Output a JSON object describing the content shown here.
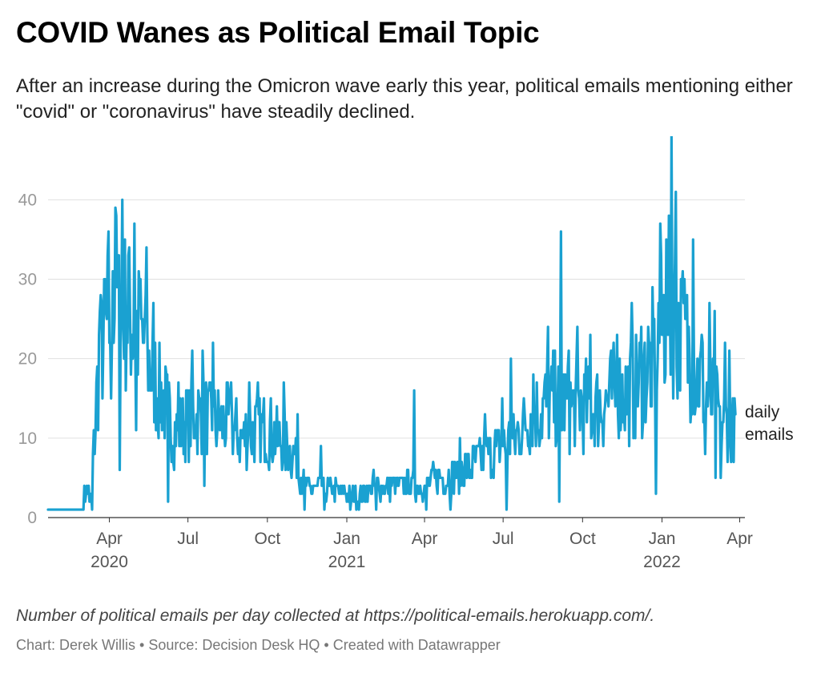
{
  "header": {
    "title": "COVID Wanes as Political Email Topic",
    "subtitle": "After an increase during the Omicron wave early this year, political emails mentioning either \"covid\" or \"coronavirus\" have steadily declined."
  },
  "footer": {
    "note": "Number of political emails per day collected at https://political-emails.herokuapp.com/.",
    "credit": "Chart: Derek Willis • Source: Decision Desk HQ • Created with Datawrapper"
  },
  "chart_data": {
    "type": "line",
    "title": "COVID Wanes as Political Email Topic",
    "x_ticks": [
      {
        "date": "2020-04-01",
        "label": "Apr",
        "year": "2020"
      },
      {
        "date": "2020-07-01",
        "label": "Jul",
        "year": ""
      },
      {
        "date": "2020-10-01",
        "label": "Oct",
        "year": ""
      },
      {
        "date": "2021-01-01",
        "label": "Jan",
        "year": "2021"
      },
      {
        "date": "2021-04-01",
        "label": "Apr",
        "year": ""
      },
      {
        "date": "2021-07-01",
        "label": "Jul",
        "year": ""
      },
      {
        "date": "2021-10-01",
        "label": "Oct",
        "year": ""
      },
      {
        "date": "2022-01-01",
        "label": "Jan",
        "year": "2022"
      },
      {
        "date": "2022-04-01",
        "label": "Apr",
        "year": ""
      }
    ],
    "x_range": [
      "2020-01-21",
      "2022-04-07"
    ],
    "y_ticks": [
      0,
      10,
      20,
      30,
      40
    ],
    "ylim": [
      0,
      48
    ],
    "grid": true,
    "color": "#1aa1d1",
    "series": [
      {
        "name": "daily emails",
        "start_date": "2020-01-21",
        "end_date": "2022-03-27",
        "anchors": [
          [
            "2020-01-21",
            1
          ],
          [
            "2020-03-02",
            1
          ],
          [
            "2020-03-05",
            4
          ],
          [
            "2020-03-10",
            1
          ],
          [
            "2020-03-14",
            9
          ],
          [
            "2020-03-20",
            20
          ],
          [
            "2020-04-01",
            25
          ],
          [
            "2020-04-10",
            28
          ],
          [
            "2020-04-20",
            26
          ],
          [
            "2020-05-01",
            24
          ],
          [
            "2020-05-10",
            22
          ],
          [
            "2020-05-20",
            18
          ],
          [
            "2020-06-01",
            15
          ],
          [
            "2020-06-15",
            11
          ],
          [
            "2020-07-01",
            12
          ],
          [
            "2020-07-15",
            13
          ],
          [
            "2020-08-01",
            12
          ],
          [
            "2020-08-15",
            12
          ],
          [
            "2020-09-01",
            10
          ],
          [
            "2020-09-15",
            11
          ],
          [
            "2020-10-01",
            11
          ],
          [
            "2020-10-15",
            10
          ],
          [
            "2020-11-01",
            8
          ],
          [
            "2020-11-10",
            5
          ],
          [
            "2020-11-20",
            3.5
          ],
          [
            "2020-12-01",
            4
          ],
          [
            "2020-12-15",
            3.5
          ],
          [
            "2021-01-01",
            3
          ],
          [
            "2021-01-15",
            2.5
          ],
          [
            "2021-02-01",
            4
          ],
          [
            "2021-02-15",
            4
          ],
          [
            "2021-03-01",
            4
          ],
          [
            "2021-03-15",
            4
          ],
          [
            "2021-04-01",
            4
          ],
          [
            "2021-04-15",
            5
          ],
          [
            "2021-05-01",
            5
          ],
          [
            "2021-05-15",
            6
          ],
          [
            "2021-06-01",
            7
          ],
          [
            "2021-06-15",
            8
          ],
          [
            "2021-07-01",
            9
          ],
          [
            "2021-07-15",
            10
          ],
          [
            "2021-08-01",
            13
          ],
          [
            "2021-08-15",
            14
          ],
          [
            "2021-09-01",
            15
          ],
          [
            "2021-09-15",
            14
          ],
          [
            "2021-10-01",
            14
          ],
          [
            "2021-10-15",
            14
          ],
          [
            "2021-11-01",
            15
          ],
          [
            "2021-11-15",
            16
          ],
          [
            "2021-12-01",
            16
          ],
          [
            "2021-12-15",
            19
          ],
          [
            "2022-01-01",
            24
          ],
          [
            "2022-01-10",
            27
          ],
          [
            "2022-01-20",
            24
          ],
          [
            "2022-02-01",
            21
          ],
          [
            "2022-02-15",
            17
          ],
          [
            "2022-03-01",
            14
          ],
          [
            "2022-03-15",
            12
          ],
          [
            "2022-03-27",
            11
          ]
        ],
        "peaks": [
          [
            "2020-03-03",
            4
          ],
          [
            "2020-03-08",
            4
          ],
          [
            "2020-03-21",
            26
          ],
          [
            "2020-03-27",
            30
          ],
          [
            "2020-03-31",
            36
          ],
          [
            "2020-04-05",
            31
          ],
          [
            "2020-04-08",
            39
          ],
          [
            "2020-04-12",
            33
          ],
          [
            "2020-04-16",
            40
          ],
          [
            "2020-04-23",
            33
          ],
          [
            "2020-04-30",
            37
          ],
          [
            "2020-05-06",
            29
          ],
          [
            "2020-05-14",
            34
          ],
          [
            "2020-05-22",
            27
          ],
          [
            "2020-06-05",
            19
          ],
          [
            "2020-06-20",
            17
          ],
          [
            "2020-06-30",
            16
          ],
          [
            "2020-07-06",
            21
          ],
          [
            "2020-07-18",
            21
          ],
          [
            "2020-07-30",
            22
          ],
          [
            "2020-08-20",
            17
          ],
          [
            "2020-09-10",
            17
          ],
          [
            "2020-09-20",
            17
          ],
          [
            "2020-10-20",
            17
          ],
          [
            "2020-11-05",
            13
          ],
          [
            "2020-12-02",
            9
          ],
          [
            "2021-03-20",
            16
          ],
          [
            "2021-05-12",
            10
          ],
          [
            "2021-06-10",
            13
          ],
          [
            "2021-06-30",
            15
          ],
          [
            "2021-07-10",
            20
          ],
          [
            "2021-08-05",
            18
          ],
          [
            "2021-08-22",
            24
          ],
          [
            "2021-09-06",
            36
          ],
          [
            "2021-09-15",
            21
          ],
          [
            "2021-09-25",
            24
          ],
          [
            "2021-10-10",
            23
          ],
          [
            "2021-11-10",
            23
          ],
          [
            "2021-11-27",
            27
          ],
          [
            "2021-12-08",
            24
          ],
          [
            "2021-12-20",
            14
          ],
          [
            "2021-12-30",
            37
          ],
          [
            "2022-01-06",
            35
          ],
          [
            "2022-01-12",
            48
          ],
          [
            "2022-01-17",
            41
          ],
          [
            "2022-01-24",
            29
          ],
          [
            "2022-02-06",
            35
          ],
          [
            "2022-02-16",
            23
          ],
          [
            "2022-02-25",
            27
          ],
          [
            "2022-03-03",
            26
          ],
          [
            "2022-03-15",
            22
          ],
          [
            "2022-03-20",
            21
          ]
        ],
        "dips": [
          [
            "2020-03-12",
            1
          ],
          [
            "2020-04-03",
            15
          ],
          [
            "2020-04-13",
            6
          ],
          [
            "2020-05-02",
            11
          ],
          [
            "2020-06-08",
            2
          ],
          [
            "2020-07-20",
            4
          ],
          [
            "2020-11-13",
            1
          ],
          [
            "2020-12-06",
            1
          ],
          [
            "2021-01-05",
            1
          ],
          [
            "2021-02-04",
            1
          ],
          [
            "2021-04-03",
            1
          ],
          [
            "2021-05-01",
            1
          ],
          [
            "2021-07-05",
            1
          ],
          [
            "2021-09-04",
            2
          ],
          [
            "2021-12-25",
            3
          ],
          [
            "2022-02-20",
            8
          ],
          [
            "2022-03-04",
            5
          ],
          [
            "2022-03-10",
            5
          ]
        ]
      }
    ]
  }
}
